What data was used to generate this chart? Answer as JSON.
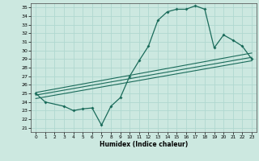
{
  "xlabel": "Humidex (Indice chaleur)",
  "bg_color": "#cce8e0",
  "grid_color": "#b0d8d0",
  "line_color": "#1a6b5a",
  "xlim": [
    -0.5,
    23.5
  ],
  "ylim": [
    20.5,
    35.5
  ],
  "xticks": [
    0,
    1,
    2,
    3,
    4,
    5,
    6,
    7,
    8,
    9,
    10,
    11,
    12,
    13,
    14,
    15,
    16,
    17,
    18,
    19,
    20,
    21,
    22,
    23
  ],
  "yticks": [
    21,
    22,
    23,
    24,
    25,
    26,
    27,
    28,
    29,
    30,
    31,
    32,
    33,
    34,
    35
  ],
  "main_x": [
    0,
    1,
    3,
    4,
    5,
    6,
    7,
    8,
    9,
    10,
    11,
    12,
    13,
    14,
    15,
    16,
    17,
    18,
    19,
    20,
    21,
    22,
    23
  ],
  "main_y": [
    25.0,
    24.0,
    23.5,
    23.0,
    23.2,
    23.3,
    21.3,
    23.5,
    24.5,
    27.0,
    28.8,
    30.5,
    33.5,
    34.5,
    34.8,
    34.8,
    35.2,
    34.8,
    30.3,
    31.8,
    31.2,
    30.5,
    29.0
  ],
  "line2_x": [
    0,
    23
  ],
  "line2_y": [
    24.8,
    29.2
  ],
  "line3_x": [
    0,
    23
  ],
  "line3_y": [
    25.1,
    29.7
  ],
  "line4_x": [
    0,
    23
  ],
  "line4_y": [
    24.4,
    28.8
  ]
}
